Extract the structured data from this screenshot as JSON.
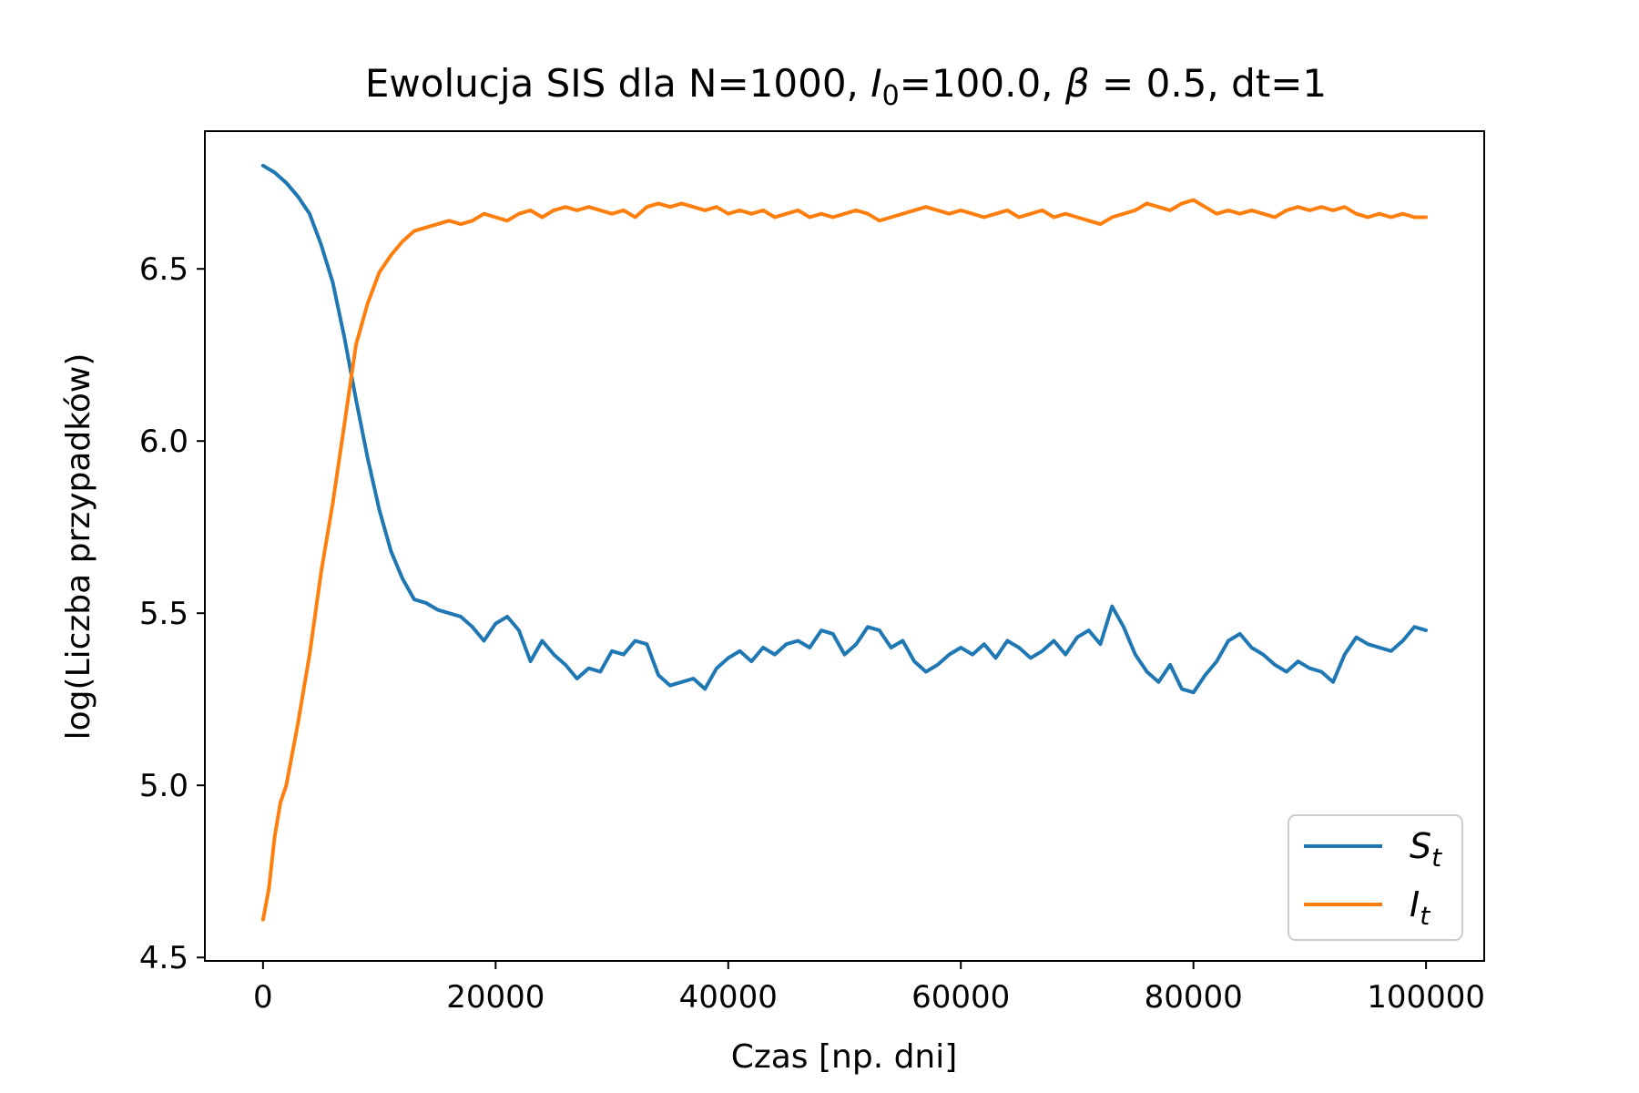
{
  "chart_data": {
    "type": "line",
    "title": {
      "prefix": "Ewolucja SIS dla N=1000, ",
      "i0_symbol": "I",
      "i0_subscript": "0",
      "i0_value": "=100.0, ",
      "beta_symbol": "β",
      "suffix": " = 0.5, dt=1"
    },
    "xlabel": "Czas [np. dni]",
    "ylabel": "log(Liczba przypadków)",
    "xlim": [
      -5000,
      105000
    ],
    "ylim": [
      4.49,
      6.9
    ],
    "x_ticks": [
      0,
      20000,
      40000,
      60000,
      80000,
      100000
    ],
    "x_tick_labels": [
      "0",
      "20000",
      "40000",
      "60000",
      "80000",
      "100000"
    ],
    "y_ticks": [
      4.5,
      5.0,
      5.5,
      6.0,
      6.5
    ],
    "y_tick_labels": [
      "4.5",
      "5.0",
      "5.5",
      "6.0",
      "6.5"
    ],
    "grid": false,
    "legend_position": "lower-right",
    "series": [
      {
        "key": "s",
        "name": "S",
        "subscript": "t",
        "color": "#1f77b4",
        "x": [
          0,
          1000,
          2000,
          3000,
          4000,
          5000,
          6000,
          7000,
          8000,
          9000,
          10000,
          11000,
          12000,
          13000,
          14000,
          15000,
          16000,
          17000,
          18000,
          19000,
          20000,
          21000,
          22000,
          23000,
          24000,
          25000,
          26000,
          27000,
          28000,
          29000,
          30000,
          31000,
          32000,
          33000,
          34000,
          35000,
          36000,
          37000,
          38000,
          39000,
          40000,
          41000,
          42000,
          43000,
          44000,
          45000,
          46000,
          47000,
          48000,
          49000,
          50000,
          51000,
          52000,
          53000,
          54000,
          55000,
          56000,
          57000,
          58000,
          59000,
          60000,
          61000,
          62000,
          63000,
          64000,
          65000,
          66000,
          67000,
          68000,
          69000,
          70000,
          71000,
          72000,
          73000,
          74000,
          75000,
          76000,
          77000,
          78000,
          79000,
          80000,
          81000,
          82000,
          83000,
          84000,
          85000,
          86000,
          87000,
          88000,
          89000,
          90000,
          91000,
          92000,
          93000,
          94000,
          95000,
          96000,
          97000,
          98000,
          99000,
          100000
        ],
        "y": [
          6.8,
          6.78,
          6.75,
          6.71,
          6.66,
          6.57,
          6.46,
          6.3,
          6.12,
          5.95,
          5.8,
          5.68,
          5.6,
          5.54,
          5.53,
          5.51,
          5.5,
          5.49,
          5.46,
          5.42,
          5.47,
          5.49,
          5.45,
          5.36,
          5.42,
          5.38,
          5.35,
          5.31,
          5.34,
          5.33,
          5.39,
          5.38,
          5.42,
          5.41,
          5.32,
          5.29,
          5.3,
          5.31,
          5.28,
          5.34,
          5.37,
          5.39,
          5.36,
          5.4,
          5.38,
          5.41,
          5.42,
          5.4,
          5.45,
          5.44,
          5.38,
          5.41,
          5.46,
          5.45,
          5.4,
          5.42,
          5.36,
          5.33,
          5.35,
          5.38,
          5.4,
          5.38,
          5.41,
          5.37,
          5.42,
          5.4,
          5.37,
          5.39,
          5.42,
          5.38,
          5.43,
          5.45,
          5.41,
          5.52,
          5.46,
          5.38,
          5.33,
          5.3,
          5.35,
          5.28,
          5.27,
          5.32,
          5.36,
          5.42,
          5.44,
          5.4,
          5.38,
          5.35,
          5.33,
          5.36,
          5.34,
          5.33,
          5.3,
          5.38,
          5.43,
          5.41,
          5.4,
          5.39,
          5.42,
          5.46,
          5.45
        ]
      },
      {
        "key": "i",
        "name": "I",
        "subscript": "t",
        "color": "#ff7f0e",
        "x": [
          0,
          500,
          1000,
          1500,
          2000,
          3000,
          4000,
          5000,
          6000,
          7000,
          8000,
          9000,
          10000,
          11000,
          12000,
          13000,
          14000,
          15000,
          16000,
          17000,
          18000,
          19000,
          20000,
          21000,
          22000,
          23000,
          24000,
          25000,
          26000,
          27000,
          28000,
          29000,
          30000,
          31000,
          32000,
          33000,
          34000,
          35000,
          36000,
          37000,
          38000,
          39000,
          40000,
          41000,
          42000,
          43000,
          44000,
          45000,
          46000,
          47000,
          48000,
          49000,
          50000,
          51000,
          52000,
          53000,
          54000,
          55000,
          56000,
          57000,
          58000,
          59000,
          60000,
          61000,
          62000,
          63000,
          64000,
          65000,
          66000,
          67000,
          68000,
          69000,
          70000,
          71000,
          72000,
          73000,
          74000,
          75000,
          76000,
          77000,
          78000,
          79000,
          80000,
          81000,
          82000,
          83000,
          84000,
          85000,
          86000,
          87000,
          88000,
          89000,
          90000,
          91000,
          92000,
          93000,
          94000,
          95000,
          96000,
          97000,
          98000,
          99000,
          100000
        ],
        "y": [
          4.61,
          4.7,
          4.85,
          4.95,
          5.0,
          5.18,
          5.38,
          5.62,
          5.82,
          6.05,
          6.28,
          6.4,
          6.49,
          6.54,
          6.58,
          6.61,
          6.62,
          6.63,
          6.64,
          6.63,
          6.64,
          6.66,
          6.65,
          6.64,
          6.66,
          6.67,
          6.65,
          6.67,
          6.68,
          6.67,
          6.68,
          6.67,
          6.66,
          6.67,
          6.65,
          6.68,
          6.69,
          6.68,
          6.69,
          6.68,
          6.67,
          6.68,
          6.66,
          6.67,
          6.66,
          6.67,
          6.65,
          6.66,
          6.67,
          6.65,
          6.66,
          6.65,
          6.66,
          6.67,
          6.66,
          6.64,
          6.65,
          6.66,
          6.67,
          6.68,
          6.67,
          6.66,
          6.67,
          6.66,
          6.65,
          6.66,
          6.67,
          6.65,
          6.66,
          6.67,
          6.65,
          6.66,
          6.65,
          6.64,
          6.63,
          6.65,
          6.66,
          6.67,
          6.69,
          6.68,
          6.67,
          6.69,
          6.7,
          6.68,
          6.66,
          6.67,
          6.66,
          6.67,
          6.66,
          6.65,
          6.67,
          6.68,
          6.67,
          6.68,
          6.67,
          6.68,
          6.66,
          6.65,
          6.66,
          6.65,
          6.66,
          6.65,
          6.65
        ]
      }
    ]
  }
}
